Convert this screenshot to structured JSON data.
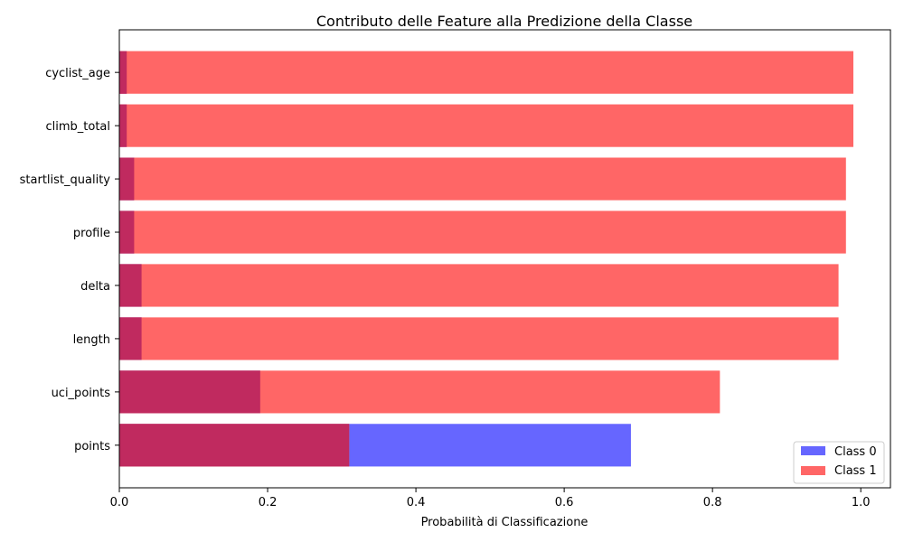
{
  "chart_data": {
    "type": "bar",
    "orientation": "horizontal",
    "title": "Contributo delle Feature alla Predizione della Classe",
    "xlabel": "Probabilità di Classificazione",
    "ylabel": "",
    "xlim": [
      0,
      1.04
    ],
    "xticks": [
      0.0,
      0.2,
      0.4,
      0.6,
      0.8,
      1.0
    ],
    "xtick_labels": [
      "0.0",
      "0.2",
      "0.4",
      "0.6",
      "0.8",
      "1.0"
    ],
    "categories": [
      "cyclist_age",
      "climb_total",
      "startlist_quality",
      "profile",
      "delta",
      "length",
      "uci_points",
      "points"
    ],
    "series": [
      {
        "name": "Class 0",
        "color": "#6666ff",
        "values": [
          0.01,
          0.01,
          0.02,
          0.02,
          0.03,
          0.03,
          0.19,
          0.69
        ]
      },
      {
        "name": "Class 1",
        "color": "#ff6666",
        "values": [
          0.99,
          0.99,
          0.98,
          0.98,
          0.97,
          0.97,
          0.81,
          0.31
        ]
      }
    ],
    "overlap_color": "#c02a5f",
    "legend": {
      "position": "bottom-right",
      "entries": [
        "Class 0",
        "Class 1"
      ]
    },
    "grid": false
  }
}
